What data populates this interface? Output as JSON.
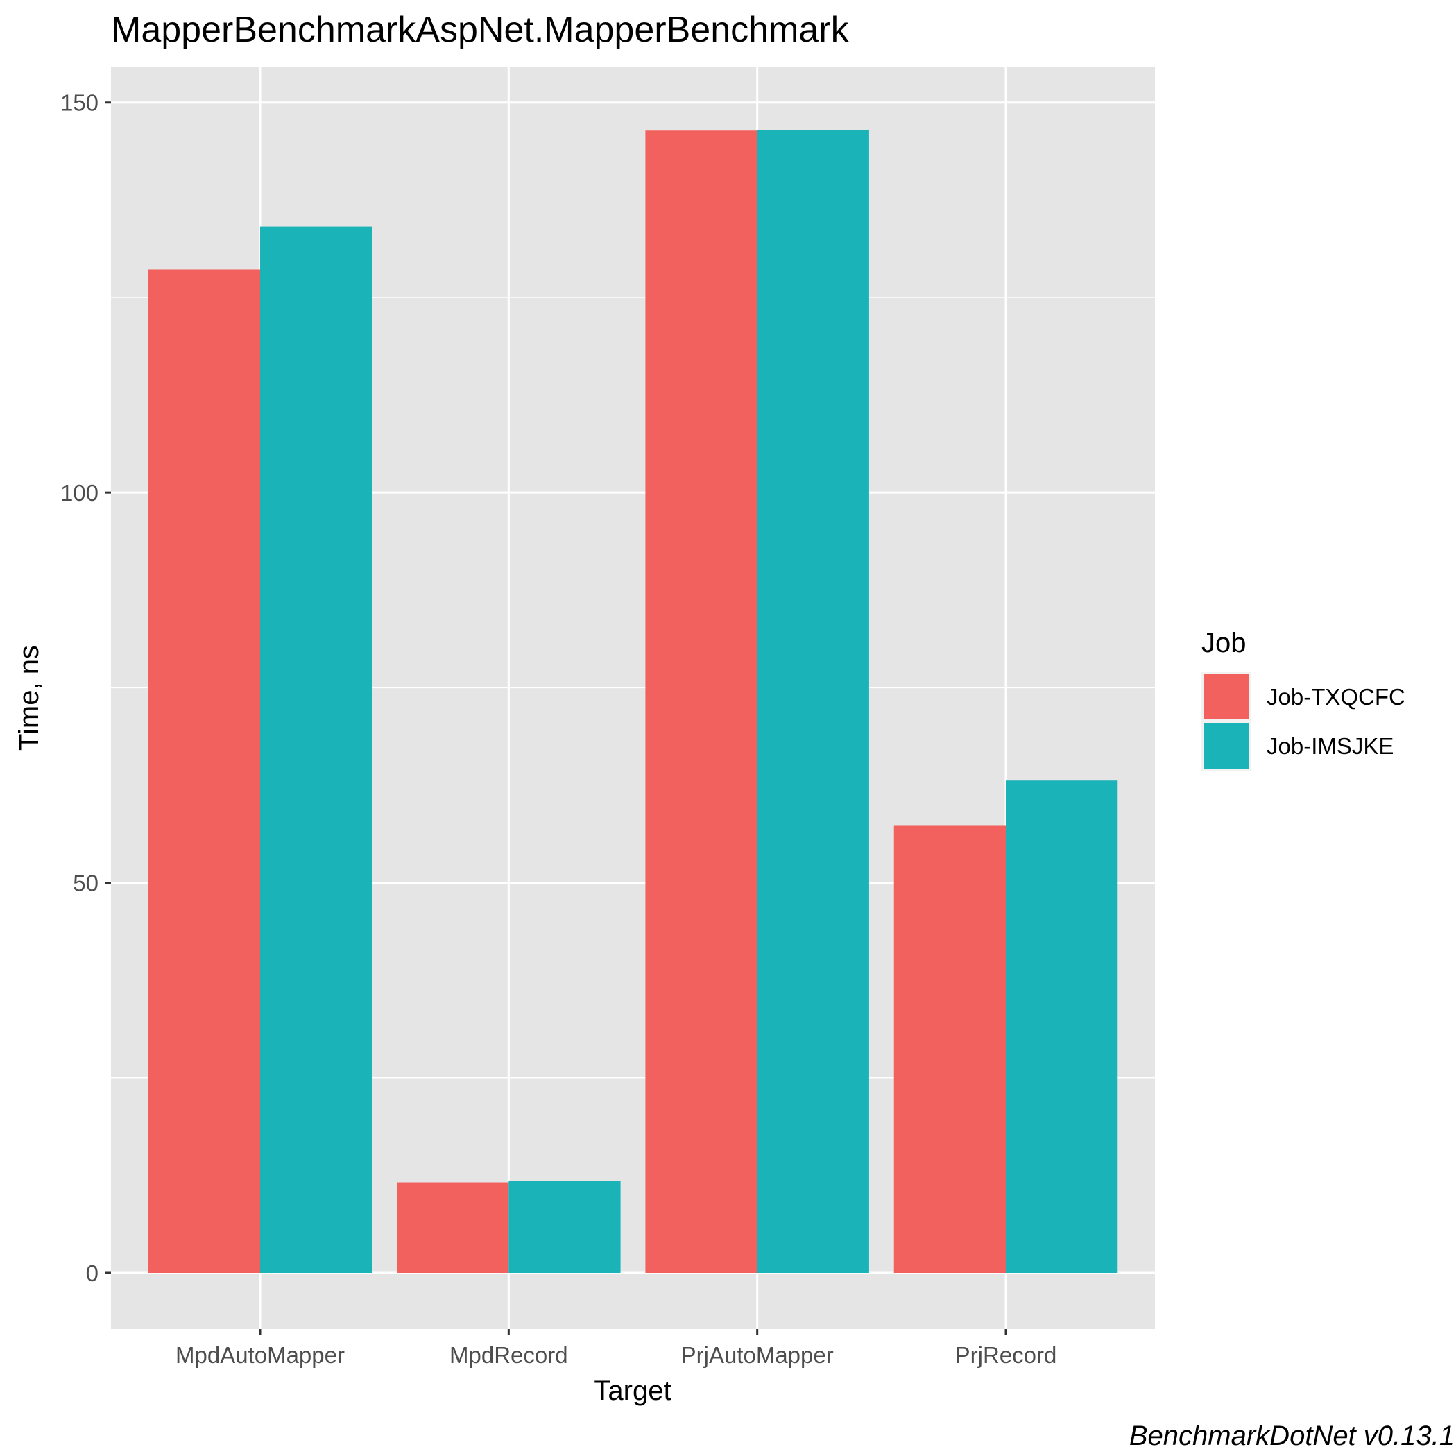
{
  "chart_data": {
    "type": "bar",
    "title": "MapperBenchmarkAspNet.MapperBenchmark",
    "xlabel": "Target",
    "ylabel": "Time, ns",
    "categories": [
      "MpdAutoMapper",
      "MpdRecord",
      "PrjAutoMapper",
      "PrjRecord"
    ],
    "series": [
      {
        "name": "Job-TXQCFC",
        "color": "#f2615e",
        "values": [
          128.6,
          11.6,
          146.4,
          57.3
        ]
      },
      {
        "name": "Job-IMSJKE",
        "color": "#1ab3b8",
        "values": [
          134.1,
          11.8,
          146.5,
          63.1
        ]
      }
    ],
    "yticks": [
      0,
      50,
      100,
      150
    ],
    "ylim": [
      -7.2,
      154.6
    ],
    "grid": true,
    "legend": {
      "title": "Job",
      "position": "right"
    },
    "caption": "BenchmarkDotNet v0.13.1"
  }
}
